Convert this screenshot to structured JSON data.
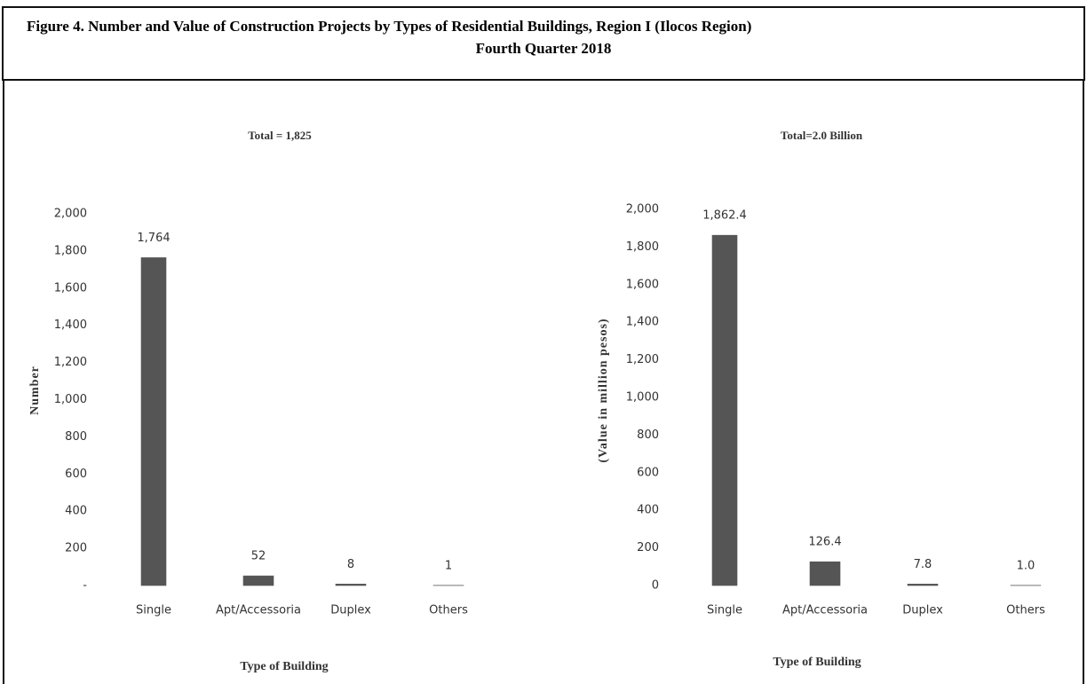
{
  "title_lines": [
    "Figure 4. Number and Value of Construction Projects by Types of Residential Buildings, Region I (Ilocos Region)",
    "Fourth Quarter 2018"
  ],
  "chart_data": [
    {
      "type": "bar",
      "title": "Total = 1,825",
      "ylabel": "Number",
      "xlabel": "Type of Building",
      "categories": [
        "Single",
        "Apt/Accessoria",
        "Duplex",
        "Others"
      ],
      "values": [
        1764,
        52,
        8,
        1
      ],
      "value_labels": [
        "1,764",
        "52",
        "8",
        "1"
      ],
      "color": "#555555",
      "ylim": [
        0,
        2000
      ],
      "yticks": [
        {
          "value": 0,
          "label": "-"
        },
        200,
        400,
        600,
        800,
        {
          "value": 1000,
          "label": "1,000"
        },
        {
          "value": 1200,
          "label": "1,200"
        },
        {
          "value": 1400,
          "label": "1,400"
        },
        {
          "value": 1600,
          "label": "1,600"
        },
        {
          "value": 1800,
          "label": "1,800"
        },
        {
          "value": 2000,
          "label": "2,000"
        }
      ],
      "grid": false
    },
    {
      "type": "bar",
      "title": "Total=2.0 Billion",
      "ylabel": "(Value in million pesos)",
      "xlabel": "Type of Building",
      "categories": [
        "Single",
        "Apt/Accessoria",
        "Duplex",
        "Others"
      ],
      "values": [
        1862.4,
        126.4,
        7.8,
        1.0
      ],
      "value_labels": [
        "1,862.4",
        "126.4",
        "7.8",
        "1.0"
      ],
      "color": "#555555",
      "ylim": [
        0,
        2000
      ],
      "yticks": [
        0,
        200,
        400,
        600,
        800,
        {
          "value": 1000,
          "label": "1,000"
        },
        {
          "value": 1200,
          "label": "1,200"
        },
        {
          "value": 1400,
          "label": "1,400"
        },
        {
          "value": 1600,
          "label": "1,600"
        },
        {
          "value": 1800,
          "label": "1,800"
        },
        {
          "value": 2000,
          "label": "2,000"
        }
      ],
      "grid": false
    }
  ]
}
